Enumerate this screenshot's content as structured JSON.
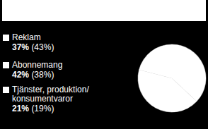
{
  "chart_data": {
    "type": "pie",
    "categories": [
      "Reklam",
      "Abonnemang",
      "Tjänster, produktion/ konsumentvaror"
    ],
    "values": [
      37,
      42,
      21
    ],
    "value_labels": [
      "37%",
      "42%",
      "21%"
    ],
    "prior_values": [
      43,
      38,
      19
    ],
    "prior_value_labels": [
      "(43%)",
      "(38%)",
      "(19%)"
    ],
    "colors": [
      "#ffffff",
      "#ffffff",
      "#ffffff"
    ],
    "data_labels": true
  }
}
